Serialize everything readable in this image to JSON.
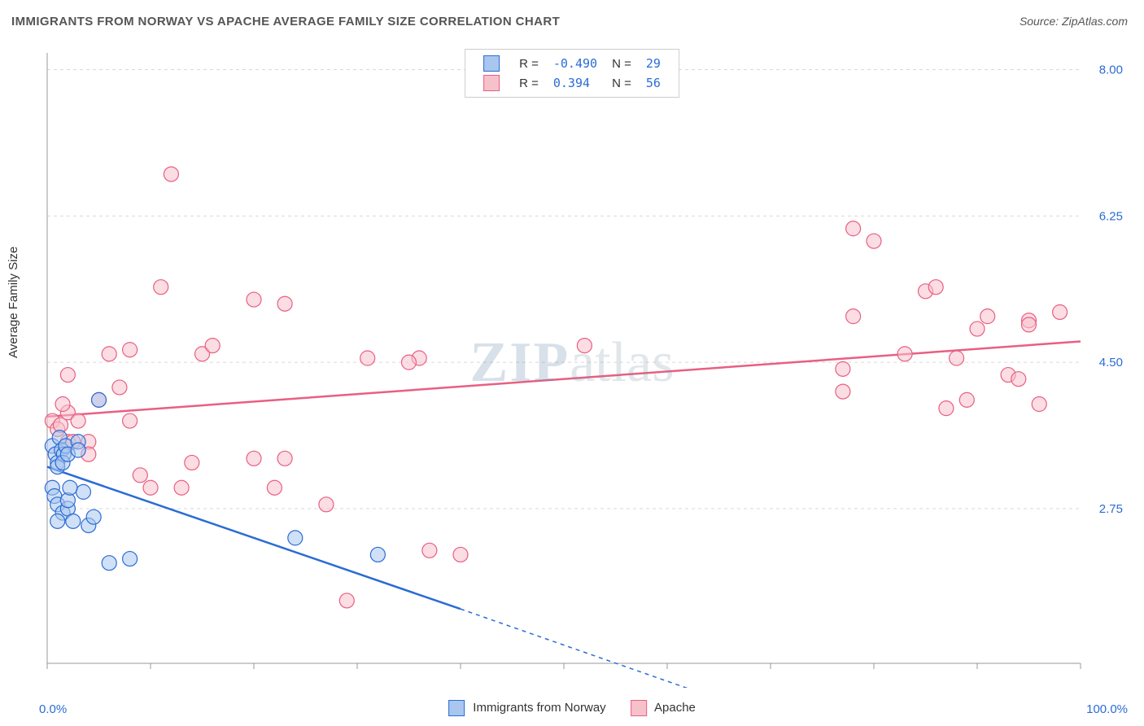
{
  "title": "IMMIGRANTS FROM NORWAY VS APACHE AVERAGE FAMILY SIZE CORRELATION CHART",
  "source": "Source: ZipAtlas.com",
  "ylabel": "Average Family Size",
  "xaxis": {
    "min_label": "0.0%",
    "max_label": "100.0%",
    "min": 0,
    "max": 100
  },
  "yaxis": {
    "ticks": [
      2.75,
      4.5,
      6.25,
      8.0
    ],
    "tick_labels": [
      "2.75",
      "4.50",
      "6.25",
      "8.00"
    ],
    "min": 0.9,
    "max": 8.2
  },
  "watermark": {
    "part1": "ZIP",
    "part2": "atlas"
  },
  "colors": {
    "blue_fill": "#a9c6ee",
    "blue_stroke": "#2b6cd4",
    "pink_fill": "#f7c1cc",
    "pink_stroke": "#e85f82",
    "grid": "#d9d9d9",
    "axis": "#999999",
    "bg": "#ffffff",
    "text_value": "#2b6cd4"
  },
  "legend_top": {
    "rows": [
      {
        "color": "blue",
        "r_label": "R =",
        "r": "-0.490",
        "n_label": "N =",
        "n": "29"
      },
      {
        "color": "pink",
        "r_label": "R =",
        "r": " 0.394",
        "n_label": "N =",
        "n": "56"
      }
    ]
  },
  "legend_bottom": {
    "items": [
      {
        "color": "blue",
        "label": "Immigrants from Norway"
      },
      {
        "color": "pink",
        "label": "Apache"
      }
    ]
  },
  "series": {
    "blue": {
      "trend": {
        "x1": 0,
        "y1": 3.25,
        "x2_solid": 40,
        "y2_solid": 1.55,
        "x2_dash": 62,
        "y2_dash": 0.6
      },
      "points": [
        [
          0.5,
          3.5
        ],
        [
          0.8,
          3.4
        ],
        [
          1.0,
          3.3
        ],
        [
          1.2,
          3.6
        ],
        [
          1.4,
          3.45
        ],
        [
          1.0,
          3.25
        ],
        [
          1.6,
          3.4
        ],
        [
          1.8,
          3.5
        ],
        [
          0.5,
          3.0
        ],
        [
          0.7,
          2.9
        ],
        [
          1.5,
          3.3
        ],
        [
          2.0,
          3.4
        ],
        [
          1.0,
          2.8
        ],
        [
          1.5,
          2.7
        ],
        [
          2.0,
          2.75
        ],
        [
          2.5,
          2.6
        ],
        [
          2.0,
          2.85
        ],
        [
          1.0,
          2.6
        ],
        [
          3.0,
          3.55
        ],
        [
          4.0,
          2.55
        ],
        [
          3.5,
          2.95
        ],
        [
          4.5,
          2.65
        ],
        [
          6.0,
          2.1
        ],
        [
          8.0,
          2.15
        ],
        [
          24.0,
          2.4
        ],
        [
          32.0,
          2.2
        ],
        [
          5.0,
          4.05
        ],
        [
          3.0,
          3.45
        ],
        [
          2.2,
          3.0
        ]
      ]
    },
    "pink": {
      "trend": {
        "x1": 0,
        "y1": 3.85,
        "x2": 100,
        "y2": 4.75
      },
      "points": [
        [
          0.5,
          3.8
        ],
        [
          1.0,
          3.7
        ],
        [
          1.3,
          3.75
        ],
        [
          2.0,
          3.55
        ],
        [
          2.0,
          3.9
        ],
        [
          1.5,
          4.0
        ],
        [
          2.5,
          3.55
        ],
        [
          3.0,
          3.8
        ],
        [
          4.0,
          3.55
        ],
        [
          2.0,
          4.35
        ],
        [
          6.0,
          4.6
        ],
        [
          7.0,
          4.2
        ],
        [
          8.0,
          3.8
        ],
        [
          8.0,
          4.65
        ],
        [
          11.0,
          5.4
        ],
        [
          12.0,
          6.75
        ],
        [
          13.0,
          3.0
        ],
        [
          15.0,
          4.6
        ],
        [
          16.0,
          4.7
        ],
        [
          20.0,
          3.35
        ],
        [
          20.0,
          5.25
        ],
        [
          22.0,
          3.0
        ],
        [
          23.0,
          5.2
        ],
        [
          23.0,
          3.35
        ],
        [
          27.0,
          2.8
        ],
        [
          29.0,
          1.65
        ],
        [
          31.0,
          4.55
        ],
        [
          37.0,
          2.25
        ],
        [
          40.0,
          2.2
        ],
        [
          36.0,
          4.55
        ],
        [
          35.0,
          4.5
        ],
        [
          52.0,
          4.7
        ],
        [
          77.0,
          4.42
        ],
        [
          77.0,
          4.15
        ],
        [
          78.0,
          6.1
        ],
        [
          78.0,
          5.05
        ],
        [
          80.0,
          5.95
        ],
        [
          83.0,
          4.6
        ],
        [
          85.0,
          5.35
        ],
        [
          86.0,
          5.4
        ],
        [
          87.0,
          3.95
        ],
        [
          88.0,
          4.55
        ],
        [
          89.0,
          4.05
        ],
        [
          90.0,
          4.9
        ],
        [
          91.0,
          5.05
        ],
        [
          93.0,
          4.35
        ],
        [
          94.0,
          4.3
        ],
        [
          95.0,
          5.0
        ],
        [
          95.0,
          4.95
        ],
        [
          96.0,
          4.0
        ],
        [
          98.0,
          5.1
        ],
        [
          5.0,
          4.05
        ],
        [
          14.0,
          3.3
        ],
        [
          10.0,
          3.0
        ],
        [
          4.0,
          3.4
        ],
        [
          9.0,
          3.15
        ]
      ]
    }
  },
  "style": {
    "marker_radius": 9,
    "marker_opacity": 0.55,
    "trend_width_solid": 2.5,
    "trend_width_dash": 1.5,
    "title_fontsize": 15,
    "label_fontsize": 15,
    "grid_dash": "4,4"
  }
}
